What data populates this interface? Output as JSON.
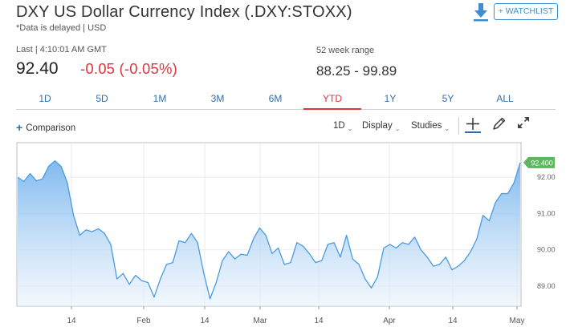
{
  "header": {
    "title": "DXY US Dollar Currency Index (.DXY:STOXX)",
    "note": "*Data is delayed | USD",
    "watchlist_label": "+ WATCHLIST"
  },
  "quote": {
    "last_label": "Last | 4:10:01 AM GMT",
    "price": "92.40",
    "change": "-0.05 (-0.05%)",
    "range_label": "52 week range",
    "range_value": "88.25 - 99.89"
  },
  "periods": [
    "1D",
    "5D",
    "1M",
    "3M",
    "6M",
    "YTD",
    "1Y",
    "5Y",
    "ALL"
  ],
  "active_period": "YTD",
  "toolbar": {
    "comparison_label": "Comparison",
    "interval_label": "1D",
    "display_label": "Display",
    "studies_label": "Studies"
  },
  "colors": {
    "line": "#4a9be0",
    "area_top": "#7ab6ee",
    "area_bottom": "#e8f2fc",
    "price_tag": "#5cb85c",
    "negative": "#d9363e",
    "link": "#2f6ea8"
  },
  "icons": [
    "download-icon",
    "plus-icon",
    "crosshair-icon",
    "pencil-icon",
    "expand-icon"
  ],
  "chart_data": {
    "type": "area",
    "x_tick_labels": [
      "14",
      "Feb",
      "14",
      "Mar",
      "14",
      "Apr",
      "14",
      "May"
    ],
    "y_tick_labels": [
      "89.00",
      "90.00",
      "91.00",
      "92.00"
    ],
    "ylim": [
      88.45,
      92.95
    ],
    "current_value_label": "92.400",
    "grid": true,
    "series": [
      {
        "values": [
          92.0,
          91.88,
          92.1,
          91.9,
          91.95,
          92.3,
          92.45,
          92.3,
          91.85,
          90.95,
          90.4,
          90.55,
          90.5,
          90.58,
          90.45,
          90.15,
          89.2,
          89.35,
          89.05,
          89.3,
          89.15,
          89.1,
          88.7,
          89.2,
          89.6,
          89.65,
          90.25,
          90.2,
          90.45,
          90.2,
          89.35,
          88.65,
          89.1,
          89.7,
          89.95,
          89.75,
          89.88,
          89.85,
          90.3,
          90.6,
          90.4,
          89.9,
          90.05,
          89.6,
          89.65,
          90.2,
          90.1,
          89.9,
          89.65,
          89.7,
          90.15,
          90.2,
          89.8,
          90.4,
          89.75,
          89.6,
          89.2,
          88.95,
          89.25,
          90.05,
          90.15,
          90.05,
          90.2,
          90.15,
          90.35,
          90.0,
          89.8,
          89.55,
          89.6,
          89.8,
          89.45,
          89.55,
          89.7,
          89.95,
          90.3,
          90.95,
          90.8,
          91.3,
          91.55,
          91.55,
          91.85,
          92.4
        ]
      }
    ]
  }
}
